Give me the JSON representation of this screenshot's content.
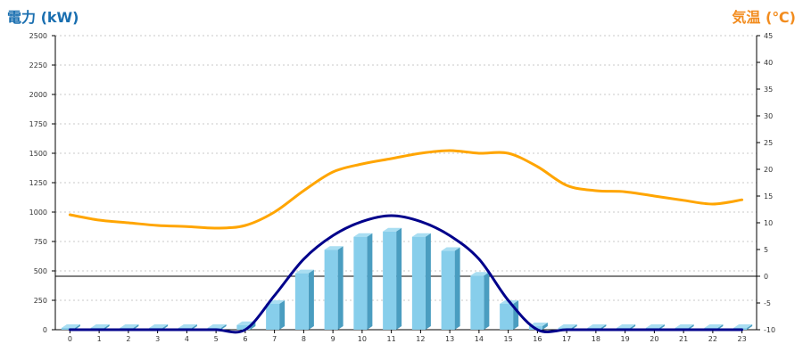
{
  "chart_data": {
    "type": "bar",
    "left_axis": {
      "title": "電力 (kW)",
      "color": "#1a6fb0",
      "range": [
        0,
        2500
      ],
      "ticks": [
        0,
        250,
        500,
        750,
        1000,
        1250,
        1500,
        1750,
        2000,
        2250,
        2500
      ]
    },
    "right_axis": {
      "title": "気温 (℃)",
      "color": "#f28c1e",
      "range": [
        -10,
        45
      ],
      "ticks": [
        -10,
        -5,
        0,
        5,
        10,
        15,
        20,
        25,
        30,
        35,
        40,
        45
      ]
    },
    "categories": [
      "0",
      "1",
      "2",
      "3",
      "4",
      "5",
      "6",
      "7",
      "8",
      "9",
      "10",
      "11",
      "12",
      "13",
      "14",
      "15",
      "16",
      "17",
      "18",
      "19",
      "20",
      "21",
      "22",
      "23"
    ],
    "series": [
      {
        "kind": "bar",
        "axis": "left",
        "color": "#87ceeb",
        "values": [
          15,
          15,
          15,
          15,
          15,
          15,
          40,
          220,
          480,
          680,
          790,
          835,
          790,
          670,
          460,
          220,
          30,
          15,
          15,
          15,
          15,
          15,
          15,
          15
        ]
      },
      {
        "kind": "line",
        "axis": "left",
        "color": "#00008b",
        "values": [
          0,
          0,
          0,
          0,
          0,
          0,
          0,
          290,
          600,
          800,
          920,
          970,
          920,
          800,
          600,
          250,
          0,
          0,
          0,
          0,
          0,
          0,
          0,
          0
        ]
      },
      {
        "kind": "line",
        "axis": "right",
        "color": "#ffa500",
        "values": [
          11.5,
          10.5,
          10,
          9.5,
          9.3,
          9,
          9.5,
          12,
          16,
          19.5,
          21,
          22,
          23,
          23.5,
          23,
          23,
          20.5,
          17,
          16,
          15.8,
          15,
          14.2,
          13.5,
          14.3
        ]
      }
    ],
    "grid": true,
    "zero_line_axis": "right"
  }
}
